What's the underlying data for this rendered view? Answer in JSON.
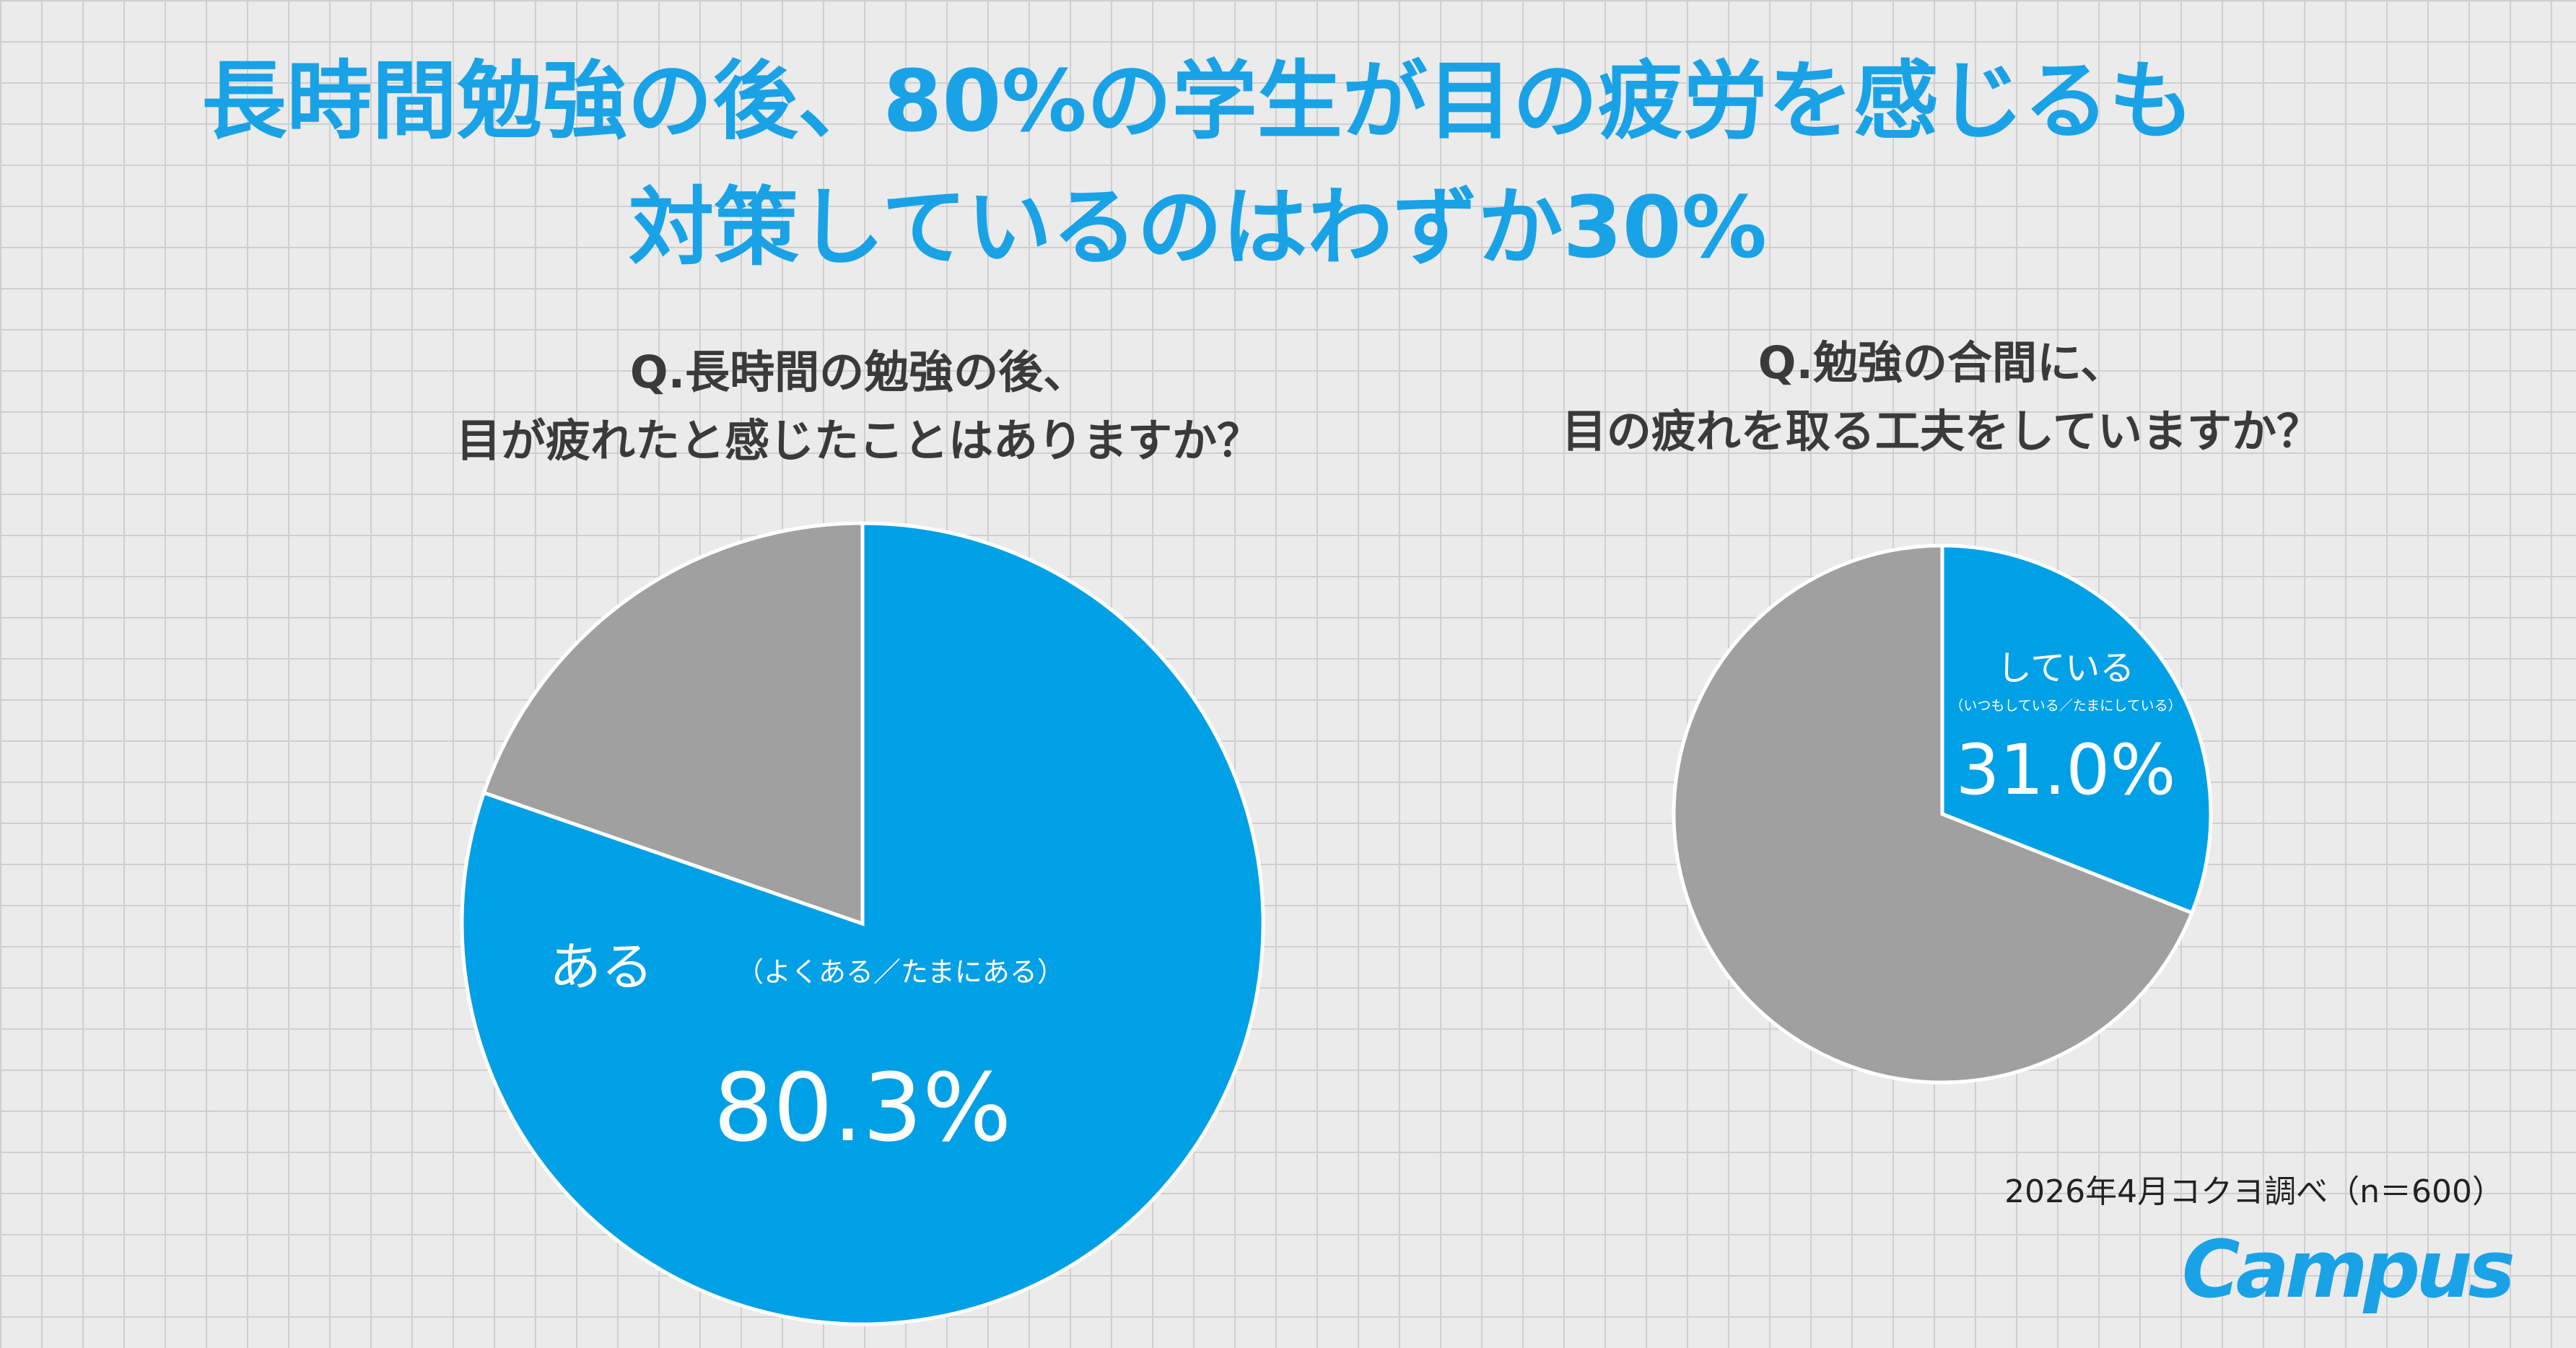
{
  "headline": {
    "line1": "長時間勉強の後、80%の学生が目の疲労を感じるも",
    "line2": "対策しているのはわずか30%"
  },
  "colors": {
    "accent": "#1aa2e6",
    "pie_blue": "#00a0e6",
    "pie_gray": "#a0a0a0"
  },
  "chart_data": [
    {
      "type": "pie",
      "question_line1": "Q.長時間の勉強の後、",
      "question_line2": "目が疲れたと感じたことはありますか？",
      "slices": [
        {
          "label": "ある",
          "sublabel": "（よくある／たまにある）",
          "value": 80.3,
          "value_label": "80.3%"
        },
        {
          "value": 19.7
        }
      ]
    },
    {
      "type": "pie",
      "question_line1": "Q.勉強の合間に、",
      "question_line2": "目の疲れを取る工夫をしていますか？",
      "slices": [
        {
          "label": "している",
          "sublabel": "（いつもしている／たまにしている）",
          "value": 31.0,
          "value_label": "31.0%"
        },
        {
          "value": 69.0
        }
      ]
    }
  ],
  "footer": {
    "source": "2026年4月コクヨ調べ（n＝600）",
    "logo": "Campus"
  }
}
